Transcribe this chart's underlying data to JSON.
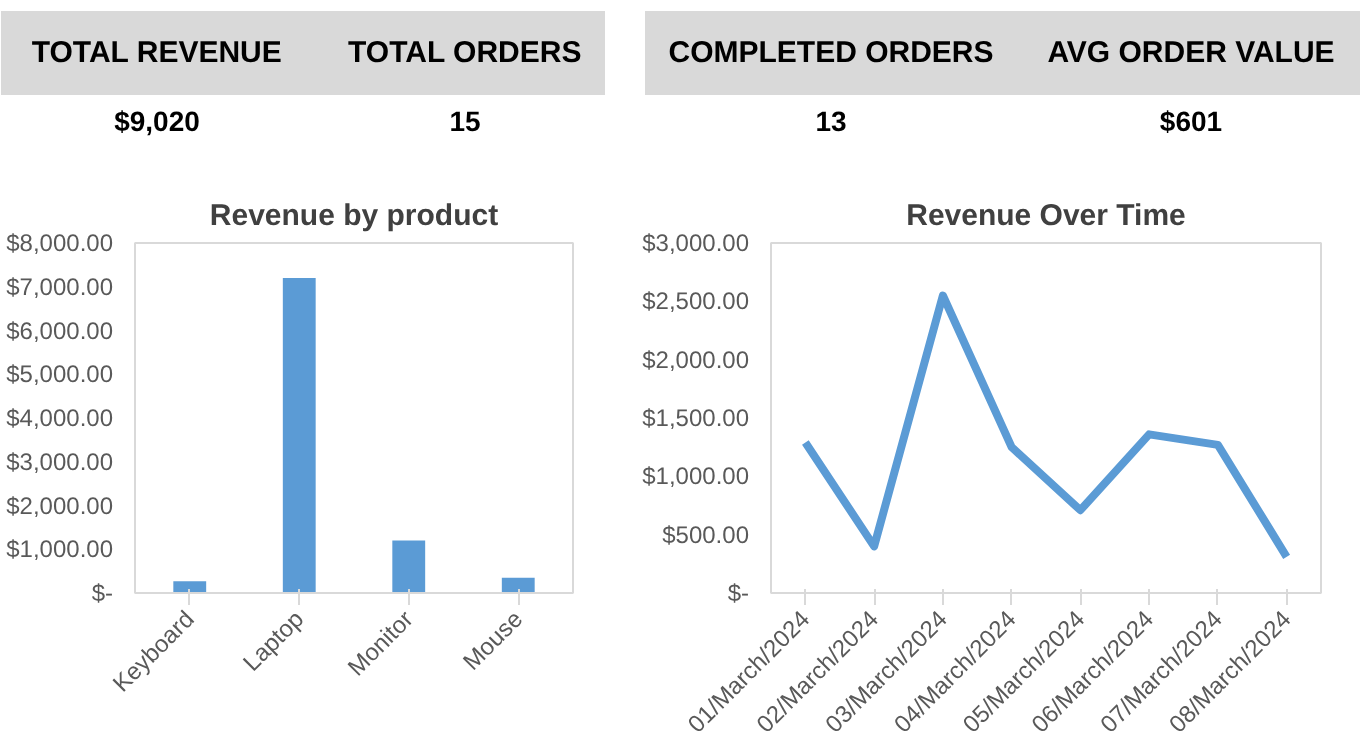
{
  "chart_data": [
    {
      "type": "other",
      "annotations": [
        "TOTAL REVENUE",
        "$9,020",
        "TOTAL ORDERS",
        "15",
        "COMPLETED ORDERS",
        "13",
        "AVG ORDER VALUE",
        "$601"
      ]
    },
    {
      "type": "bar",
      "title": "Revenue by product",
      "categories": [
        "Keyboard",
        "Laptop",
        "Monitor",
        "Mouse"
      ],
      "values": [
        270,
        7200,
        1200,
        350
      ],
      "color": "#5b9bd5",
      "ylim": [
        0,
        8000
      ],
      "yticks": [
        {
          "value": 0,
          "label": "$-"
        },
        {
          "value": 1000,
          "label": "$1,000.00"
        },
        {
          "value": 2000,
          "label": "$2,000.00"
        },
        {
          "value": 3000,
          "label": "$3,000.00"
        },
        {
          "value": 4000,
          "label": "$4,000.00"
        },
        {
          "value": 5000,
          "label": "$5,000.00"
        },
        {
          "value": 6000,
          "label": "$6,000.00"
        },
        {
          "value": 7000,
          "label": "$7,000.00"
        },
        {
          "value": 8000,
          "label": "$8,000.00"
        }
      ],
      "grid": false
    },
    {
      "type": "line",
      "title": "Revenue Over Time",
      "categories": [
        "01/March/2024",
        "02/March/2024",
        "03/March/2024",
        "04/March/2024",
        "05/March/2024",
        "06/March/2024",
        "07/March/2024",
        "08/March/2024"
      ],
      "values": [
        1290,
        400,
        2550,
        1250,
        710,
        1360,
        1270,
        310
      ],
      "color": "#5b9bd5",
      "ylim": [
        0,
        3000
      ],
      "yticks": [
        {
          "value": 0,
          "label": "$-"
        },
        {
          "value": 500,
          "label": "$500.00"
        },
        {
          "value": 1000,
          "label": "$1,000.00"
        },
        {
          "value": 1500,
          "label": "$1,500.00"
        },
        {
          "value": 2000,
          "label": "$2,000.00"
        },
        {
          "value": 2500,
          "label": "$2,500.00"
        },
        {
          "value": 3000,
          "label": "$3,000.00"
        }
      ],
      "grid": false,
      "marker": "none",
      "line_style": "solid"
    }
  ]
}
